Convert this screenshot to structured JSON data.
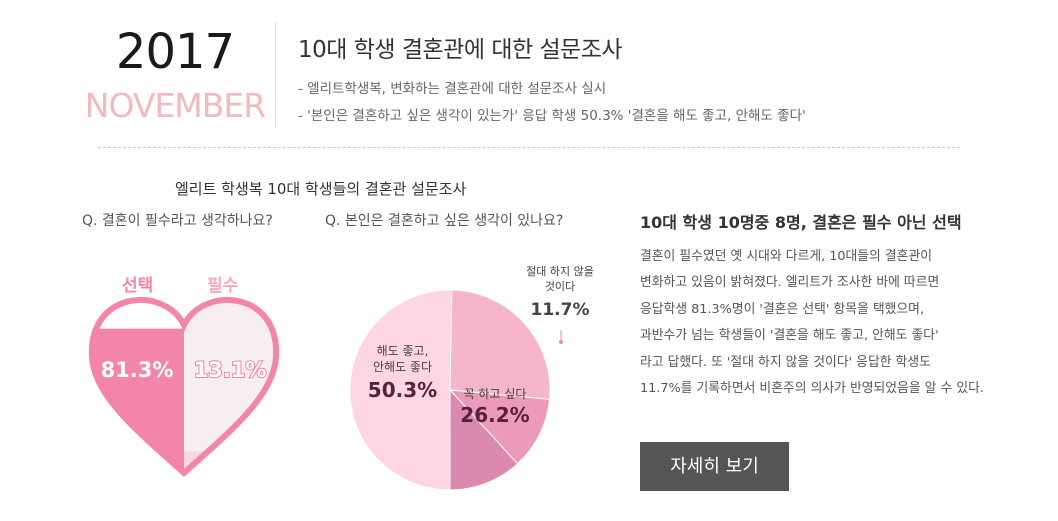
{
  "header": {
    "year": "2017",
    "month": "NOVEMBER",
    "title": "10대 학생 결혼관에 대한 설문조사",
    "lines": [
      "- 엘리트학생복, 변화하는 결혼관에 대한 설문조사 실시",
      "- '본인은 결혼하고 싶은 생각이 있는가' 응답 학생 50.3% '결혼을 해도 좋고, 안해도 좋다'"
    ]
  },
  "survey": {
    "title": "엘리트 학생복 10대 학생들의 결혼관 설문조사",
    "q1": "Q. 결혼이 필수라고 생각하나요?",
    "q2": "Q. 본인은 결혼하고 싶은 생각이 있나요?"
  },
  "colors": {
    "accent_pink": "#f386a8",
    "light_pink": "#fbd7e3",
    "heart_light": "#f6eef1"
  },
  "chart_data": [
    {
      "type": "bar",
      "title": "Q. 결혼이 필수라고 생각하나요?",
      "style": "heart-fill",
      "categories": [
        "선택",
        "필수"
      ],
      "values": [
        81.3,
        13.1
      ],
      "value_labels": [
        "81.3%",
        "13.1%"
      ],
      "unit": "%"
    },
    {
      "type": "pie",
      "title": "Q. 본인은 결혼하고 싶은 생각이 있나요?",
      "slices": [
        {
          "label": "해도 좋고, 안해도 좋다",
          "label_lines": [
            "해도 좋고,",
            "안해도 좋다"
          ],
          "value": 50.3,
          "value_label": "50.3%",
          "color": "#fdd5e3"
        },
        {
          "label": "꼭 하고 싶다",
          "label_lines": [
            "꼭 하고 싶다"
          ],
          "value": 26.2,
          "value_label": "26.2%",
          "color": "#f5b5cb"
        },
        {
          "label": "절대 하지 않을 것이다",
          "label_lines": [
            "절대 하지 않을",
            "것이다"
          ],
          "value": 11.7,
          "value_label": "11.7%",
          "color": "#eb9abb"
        },
        {
          "label": "",
          "label_lines": [],
          "value": 11.8,
          "value_label": "",
          "color": "#d98aae"
        }
      ]
    }
  ],
  "right": {
    "title": "10대 학생 10명중 8명, 결혼은 필수 아닌 선택",
    "body": [
      "결혼이 필수였던 옛 시대와 다르게, 10대들의 결혼관이",
      "변화하고 있음이 밝혀졌다. 엘리트가 조사한 바에 따르면",
      "응답학생 81.3%명이 '결혼은 선택' 항목을 택했으며,",
      "과반수가 넘는 학생들이 '결혼을 해도 좋고, 안해도 좋다'",
      "라고 답했다. 또 '절대 하지 않을 것이다' 응답한 학생도",
      "11.7%를 기록하면서 비혼주의 의사가 반영되었음을 알 수 있다."
    ],
    "button_label": "자세히 보기"
  }
}
